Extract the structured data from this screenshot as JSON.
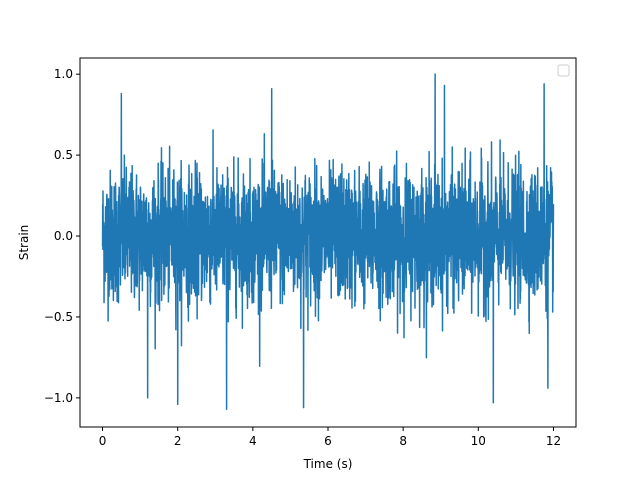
{
  "chart_data": {
    "type": "line",
    "title": "",
    "xlabel": "Time (s)",
    "ylabel": "Strain",
    "xlim": [
      -0.6,
      12.6
    ],
    "ylim": [
      -1.18,
      1.1
    ],
    "x_ticks": [
      0,
      2,
      4,
      6,
      8,
      10,
      12
    ],
    "x_tick_labels": [
      "0",
      "2",
      "4",
      "6",
      "8",
      "10",
      "12"
    ],
    "y_ticks": [
      -1.0,
      -0.5,
      0.0,
      0.5,
      1.0
    ],
    "y_tick_labels": [
      "−1.0",
      "−0.5",
      "0.0",
      "0.5",
      "1.0"
    ],
    "grid": false,
    "legend": {
      "position": "top-right",
      "entries": []
    },
    "series": [
      {
        "color": "#1f77b4",
        "x_range": [
          0,
          12
        ],
        "description_values": {
          "typical_amplitude": 0.5,
          "max": 1.0,
          "min": -1.07,
          "peaks": [
            {
              "x": 0.5,
              "y": 0.88
            },
            {
              "x": 4.5,
              "y": 0.91
            },
            {
              "x": 8.85,
              "y": 1.0
            },
            {
              "x": 9.1,
              "y": 0.93
            },
            {
              "x": 11.75,
              "y": 0.94
            }
          ],
          "troughs": [
            {
              "x": 1.2,
              "y": -1.0
            },
            {
              "x": 2.0,
              "y": -1.04
            },
            {
              "x": 3.3,
              "y": -1.07
            },
            {
              "x": 5.35,
              "y": -1.06
            },
            {
              "x": 10.4,
              "y": -1.03
            },
            {
              "x": 11.85,
              "y": -0.94
            }
          ]
        }
      }
    ]
  }
}
